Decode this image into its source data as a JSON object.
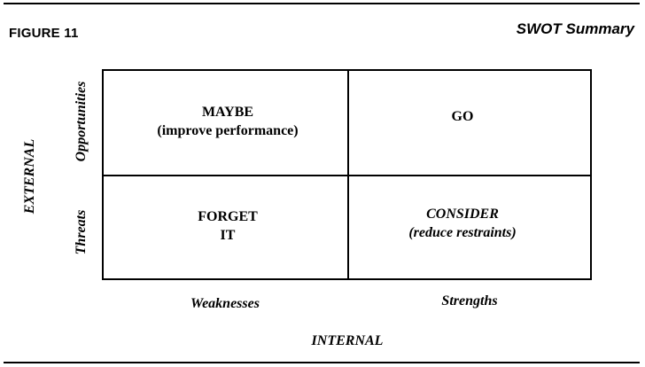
{
  "figure_label": "FIGURE 11",
  "figure_title": "SWOT Summary",
  "axes": {
    "vertical_axis_title": "EXTERNAL",
    "vertical_top_label": "Opportunities",
    "vertical_bottom_label": "Threats",
    "horizontal_axis_title": "INTERNAL",
    "horizontal_left_label": "Weaknesses",
    "horizontal_right_label": "Strengths"
  },
  "quadrants": {
    "top_left": {
      "line1": "MAYBE",
      "line2": "(improve performance)"
    },
    "top_right": {
      "line1": "GO"
    },
    "bottom_left": {
      "line1": "FORGET",
      "line2": "IT"
    },
    "bottom_right": {
      "line1": "CONSIDER",
      "line2": "(reduce restraints)"
    }
  }
}
